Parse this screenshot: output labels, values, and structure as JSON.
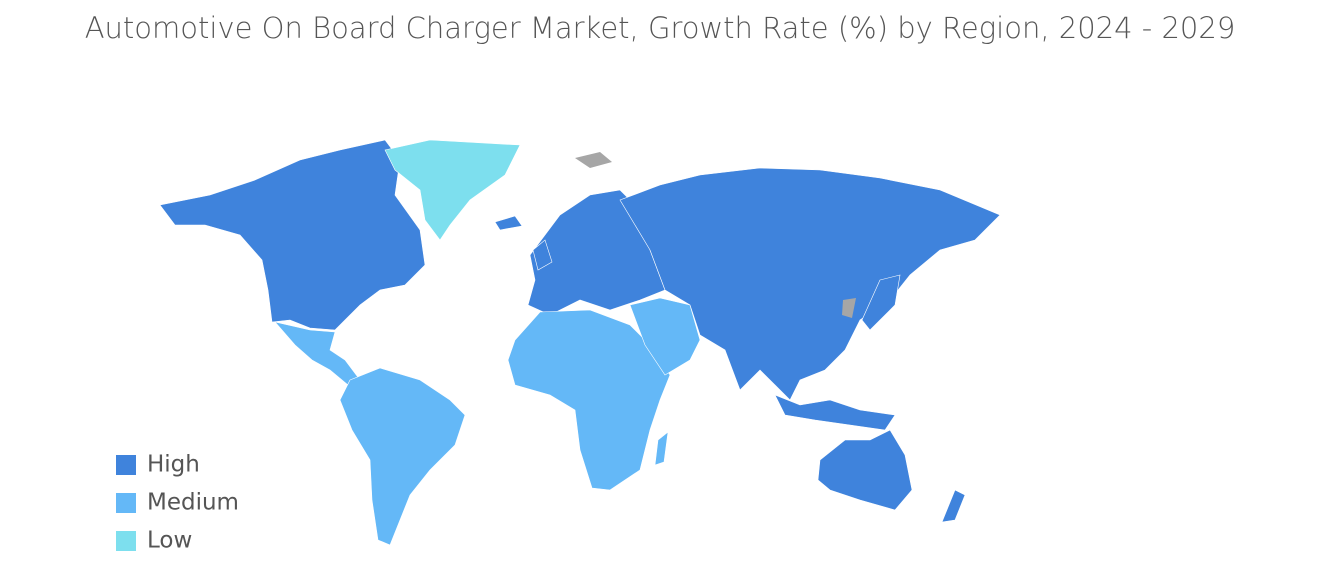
{
  "title": "Automotive On Board Charger Market, Growth Rate (%) by Region, 2024 - 2029",
  "legend": [
    {
      "label": "High",
      "color": "#3f83dc"
    },
    {
      "label": "Medium",
      "color": "#64b8f7"
    },
    {
      "label": "Low",
      "color": "#7ddfee"
    }
  ],
  "no_data_color": "#a6a6a6"
}
